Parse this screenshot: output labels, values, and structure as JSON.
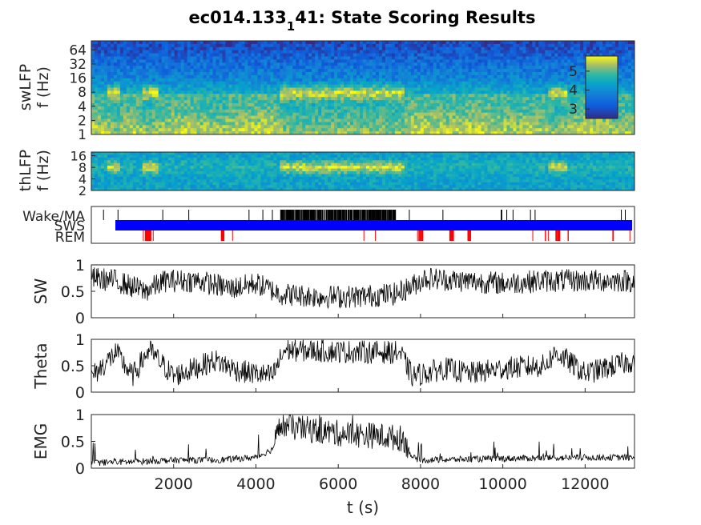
{
  "chart_data": {
    "title": "ec014.133_1 41: State Scoring Results",
    "title_parts": {
      "prefix": "ec014.133",
      "subscript": "1",
      "suffix": "41: State Scoring Results"
    },
    "shared_x": {
      "label": "t (s)",
      "range": [
        0,
        13200
      ],
      "ticks": [
        2000,
        4000,
        6000,
        8000,
        10000,
        12000
      ],
      "tick_labels": [
        "2000",
        "4000",
        "6000",
        "8000",
        "10000",
        "12000"
      ]
    },
    "panels": [
      {
        "type": "heatmap",
        "name": "swLFP spectrogram",
        "ylabel_lines": [
          "swLFP",
          "f (Hz)"
        ],
        "yscale": "log",
        "ylim": [
          1,
          100
        ],
        "yticks": [
          1,
          2,
          4,
          8,
          16,
          32,
          64
        ],
        "ytick_labels": [
          "1",
          "2",
          "4",
          "8",
          "16",
          "32",
          "64"
        ],
        "colorbar": {
          "ticks": [
            3,
            4,
            5
          ],
          "tick_labels": [
            "3",
            "4",
            "5"
          ],
          "range": [
            2.5,
            5.8
          ],
          "colormap": "parula"
        },
        "notable_bands": [
          {
            "freq_hz": 8,
            "t_range": [
              4500,
              7800
            ],
            "description": "strong theta band"
          }
        ]
      },
      {
        "type": "heatmap",
        "name": "thLFP spectrogram",
        "ylabel_lines": [
          "thLFP",
          "f (Hz)"
        ],
        "yscale": "log",
        "ylim": [
          2,
          20
        ],
        "yticks": [
          2,
          4,
          8,
          16
        ],
        "ytick_labels": [
          "2",
          "4",
          "8",
          "16"
        ],
        "colormap": "parula"
      },
      {
        "type": "hypnogram",
        "name": "state raster",
        "states": [
          {
            "label": "Wake/MA",
            "color": "#000000"
          },
          {
            "label": "SWS",
            "color": "#0000ff"
          },
          {
            "label": "REM",
            "color": "#ff0000"
          }
        ],
        "wake_periods": [
          [
            4600,
            7400
          ]
        ],
        "rem_periods": [
          [
            1300,
            1450
          ],
          [
            3150,
            3220
          ],
          [
            7950,
            8080
          ],
          [
            8700,
            8800
          ],
          [
            9150,
            9230
          ],
          [
            11300,
            11360
          ]
        ]
      },
      {
        "type": "line",
        "name": "SW",
        "ylabel": "SW",
        "ylim": [
          0,
          1
        ],
        "yticks": [
          0,
          0.5,
          1
        ],
        "ytick_labels": [
          "0",
          "0.5",
          "1"
        ],
        "x": [
          0,
          600,
          1300,
          1800,
          2600,
          3400,
          4000,
          4600,
          5500,
          6500,
          7400,
          7800,
          8100,
          9000,
          10000,
          11000,
          12000,
          13200
        ],
        "y": [
          0.75,
          0.7,
          0.5,
          0.7,
          0.7,
          0.55,
          0.65,
          0.45,
          0.4,
          0.4,
          0.45,
          0.6,
          0.75,
          0.7,
          0.65,
          0.7,
          0.7,
          0.7
        ]
      },
      {
        "type": "line",
        "name": "Theta",
        "ylabel": "Theta",
        "ylim": [
          0,
          1
        ],
        "yticks": [
          0,
          0.5,
          1
        ],
        "ytick_labels": [
          "0",
          "0.5",
          "1"
        ],
        "x": [
          0,
          600,
          1000,
          1400,
          2000,
          3000,
          3600,
          4400,
          4700,
          6000,
          7500,
          7800,
          8600,
          9200,
          10000,
          11000,
          11300,
          12000,
          13200
        ],
        "y": [
          0.28,
          0.75,
          0.3,
          0.8,
          0.3,
          0.6,
          0.4,
          0.3,
          0.8,
          0.77,
          0.75,
          0.3,
          0.45,
          0.35,
          0.45,
          0.5,
          0.75,
          0.35,
          0.6
        ]
      },
      {
        "type": "line",
        "name": "EMG",
        "ylabel": "EMG",
        "ylim": [
          0,
          1
        ],
        "yticks": [
          0,
          0.5,
          1
        ],
        "ytick_labels": [
          "0",
          "0.5",
          "1"
        ],
        "x": [
          0,
          1000,
          2000,
          3000,
          4000,
          4400,
          4600,
          5000,
          6000,
          7000,
          7600,
          7800,
          8000,
          10000,
          12000,
          13200
        ],
        "y": [
          0.1,
          0.12,
          0.15,
          0.15,
          0.2,
          0.35,
          0.8,
          0.75,
          0.65,
          0.6,
          0.55,
          0.2,
          0.15,
          0.18,
          0.2,
          0.2
        ]
      }
    ]
  }
}
